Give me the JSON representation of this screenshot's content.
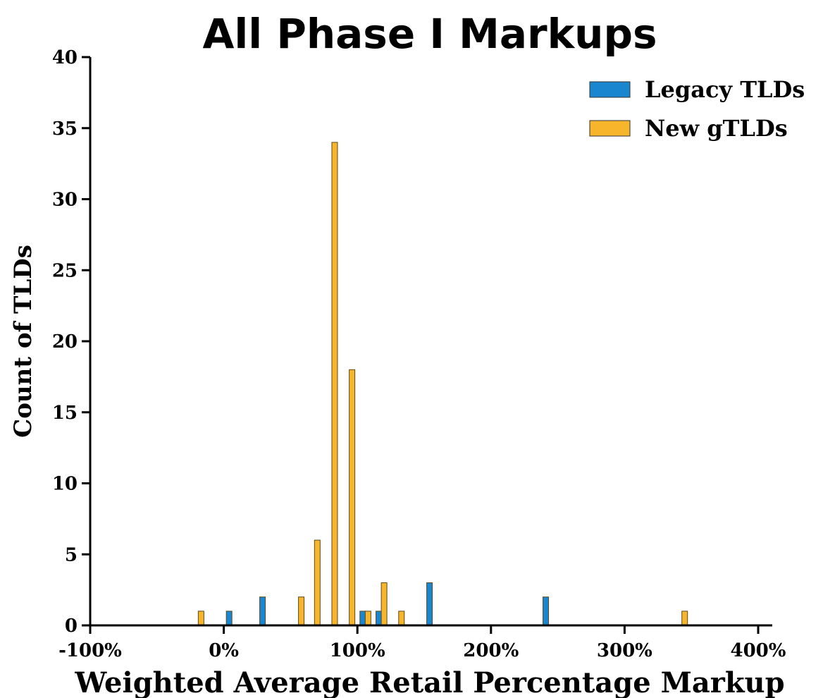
{
  "chart_data": {
    "type": "bar",
    "title": "All Phase I Markups",
    "xlabel": "Weighted Average Retail Percentage Markup",
    "ylabel": "Count of TLDs",
    "xlim": [
      -100,
      400
    ],
    "ylim": [
      0,
      40
    ],
    "x_ticks": [
      -100,
      0,
      100,
      200,
      300,
      400
    ],
    "x_tick_labels": [
      "-100%",
      "0%",
      "100%",
      "200%",
      "300%",
      "400%"
    ],
    "y_ticks": [
      0,
      5,
      10,
      15,
      20,
      25,
      30,
      35,
      40
    ],
    "y_tick_labels": [
      "0",
      "5",
      "10",
      "15",
      "20",
      "25",
      "30",
      "35",
      "40"
    ],
    "legend_position": "top-right",
    "series": [
      {
        "name": "Legacy TLDs",
        "color": "#1b86d0",
        "points": [
          {
            "x": 4,
            "y": 1
          },
          {
            "x": 29,
            "y": 2
          },
          {
            "x": 104,
            "y": 1
          },
          {
            "x": 116,
            "y": 1
          },
          {
            "x": 154,
            "y": 3
          },
          {
            "x": 241,
            "y": 2
          }
        ]
      },
      {
        "name": "New gTLDs",
        "color": "#f7b52b",
        "points": [
          {
            "x": -17,
            "y": 1
          },
          {
            "x": 58,
            "y": 2
          },
          {
            "x": 70,
            "y": 6
          },
          {
            "x": 83,
            "y": 34
          },
          {
            "x": 96,
            "y": 18
          },
          {
            "x": 108,
            "y": 1
          },
          {
            "x": 120,
            "y": 3
          },
          {
            "x": 133,
            "y": 1
          },
          {
            "x": 345,
            "y": 1
          }
        ]
      }
    ]
  }
}
